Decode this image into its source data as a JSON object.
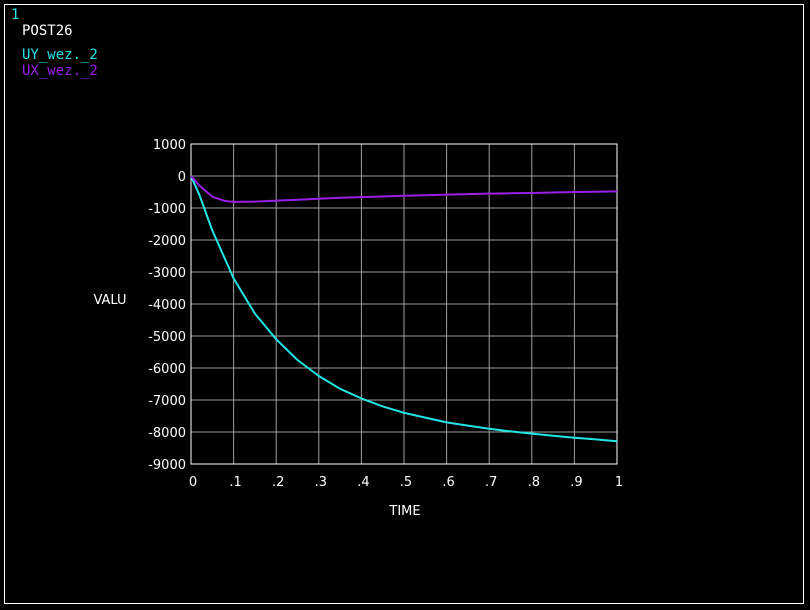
{
  "window_number": "1",
  "header_label": "POST26",
  "legend": [
    {
      "name": "UY_wez._2",
      "color": "#22e6e6"
    },
    {
      "name": "UX_wez._2",
      "color": "#9a1fe6"
    }
  ],
  "chart_data": {
    "type": "line",
    "xlabel": "TIME",
    "ylabel": "VALU",
    "xlim": [
      0,
      1
    ],
    "ylim": [
      -9000,
      1000
    ],
    "x_ticks": [
      0,
      0.1,
      0.2,
      0.3,
      0.4,
      0.5,
      0.6,
      0.7,
      0.8,
      0.9,
      1
    ],
    "x_tick_labels": [
      "0",
      ".1",
      ".2",
      ".3",
      ".4",
      ".5",
      ".6",
      ".7",
      ".8",
      ".9",
      "1"
    ],
    "y_ticks": [
      1000,
      0,
      -1000,
      -2000,
      -3000,
      -4000,
      -5000,
      -6000,
      -7000,
      -8000,
      -9000
    ],
    "y_tick_labels": [
      "1000",
      "0",
      "-1000",
      "-2000",
      "-3000",
      "-4000",
      "-5000",
      "-6000",
      "-7000",
      "-8000",
      "-9000"
    ],
    "grid": true,
    "background": "#000000",
    "axis_color": "#ffffff",
    "grid_color": "#a0a0a0",
    "series": [
      {
        "name": "UY_wez._2",
        "color": "#22e6e6",
        "x": [
          0,
          0.02,
          0.05,
          0.08,
          0.1,
          0.15,
          0.2,
          0.25,
          0.3,
          0.35,
          0.4,
          0.45,
          0.5,
          0.55,
          0.6,
          0.65,
          0.7,
          0.75,
          0.8,
          0.85,
          0.9,
          0.95,
          1.0
        ],
        "values": [
          0,
          -600,
          -1700,
          -2600,
          -3200,
          -4300,
          -5100,
          -5750,
          -6250,
          -6650,
          -6950,
          -7200,
          -7400,
          -7550,
          -7700,
          -7800,
          -7900,
          -7980,
          -8050,
          -8120,
          -8180,
          -8230,
          -8290
        ]
      },
      {
        "name": "UX_wez._2",
        "color": "#9a1fe6",
        "x": [
          0,
          0.02,
          0.05,
          0.08,
          0.1,
          0.15,
          0.2,
          0.25,
          0.3,
          0.35,
          0.4,
          0.45,
          0.5,
          0.55,
          0.6,
          0.65,
          0.7,
          0.75,
          0.8,
          0.85,
          0.9,
          0.95,
          1.0
        ],
        "values": [
          0,
          -300,
          -650,
          -780,
          -810,
          -800,
          -770,
          -740,
          -710,
          -680,
          -660,
          -640,
          -620,
          -600,
          -580,
          -565,
          -550,
          -540,
          -530,
          -515,
          -500,
          -490,
          -480
        ]
      }
    ]
  }
}
